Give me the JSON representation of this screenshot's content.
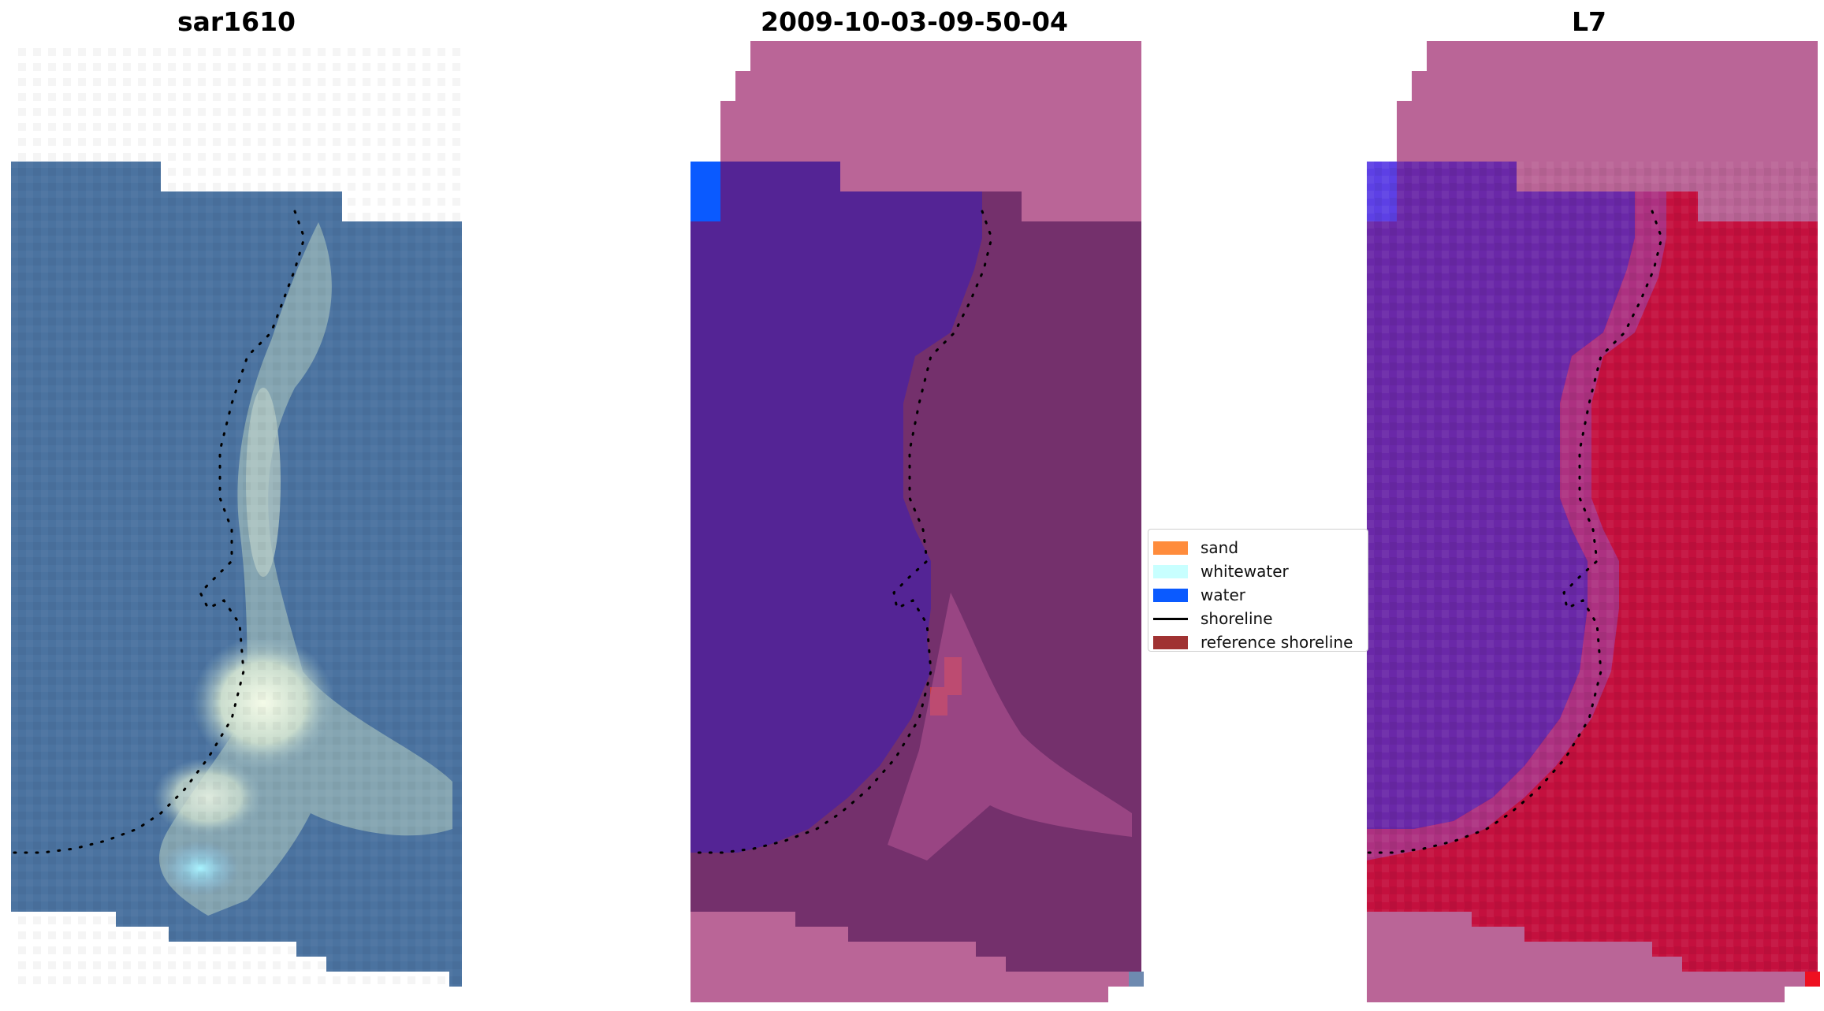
{
  "panels": [
    {
      "title": "sar1610",
      "kind": "rgb"
    },
    {
      "title": "2009-10-03-09-50-04",
      "kind": "classified"
    },
    {
      "title": "L7",
      "kind": "index"
    }
  ],
  "legend": [
    {
      "label": "sand",
      "color": "#ff8c3c",
      "kind": "patch"
    },
    {
      "label": "whitewater",
      "color": "#c8ffff",
      "kind": "patch"
    },
    {
      "label": "water",
      "color": "#0a5aff",
      "kind": "patch"
    },
    {
      "label": "shoreline",
      "color": "#000000",
      "kind": "line"
    },
    {
      "label": "reference shoreline",
      "color": "#a03232",
      "kind": "patch"
    }
  ],
  "colors": {
    "rgb_water": "#4a73a0",
    "rgb_sand": "#dde8d0",
    "class_water": "#542495",
    "class_land": "#74306c",
    "class_nodata": "#ba6597",
    "class_ref": "#c43c44",
    "index_water": "#6a28a8",
    "index_land": "#c4103e",
    "index_nodata": "#ba6597",
    "shoreline": "#000000"
  }
}
